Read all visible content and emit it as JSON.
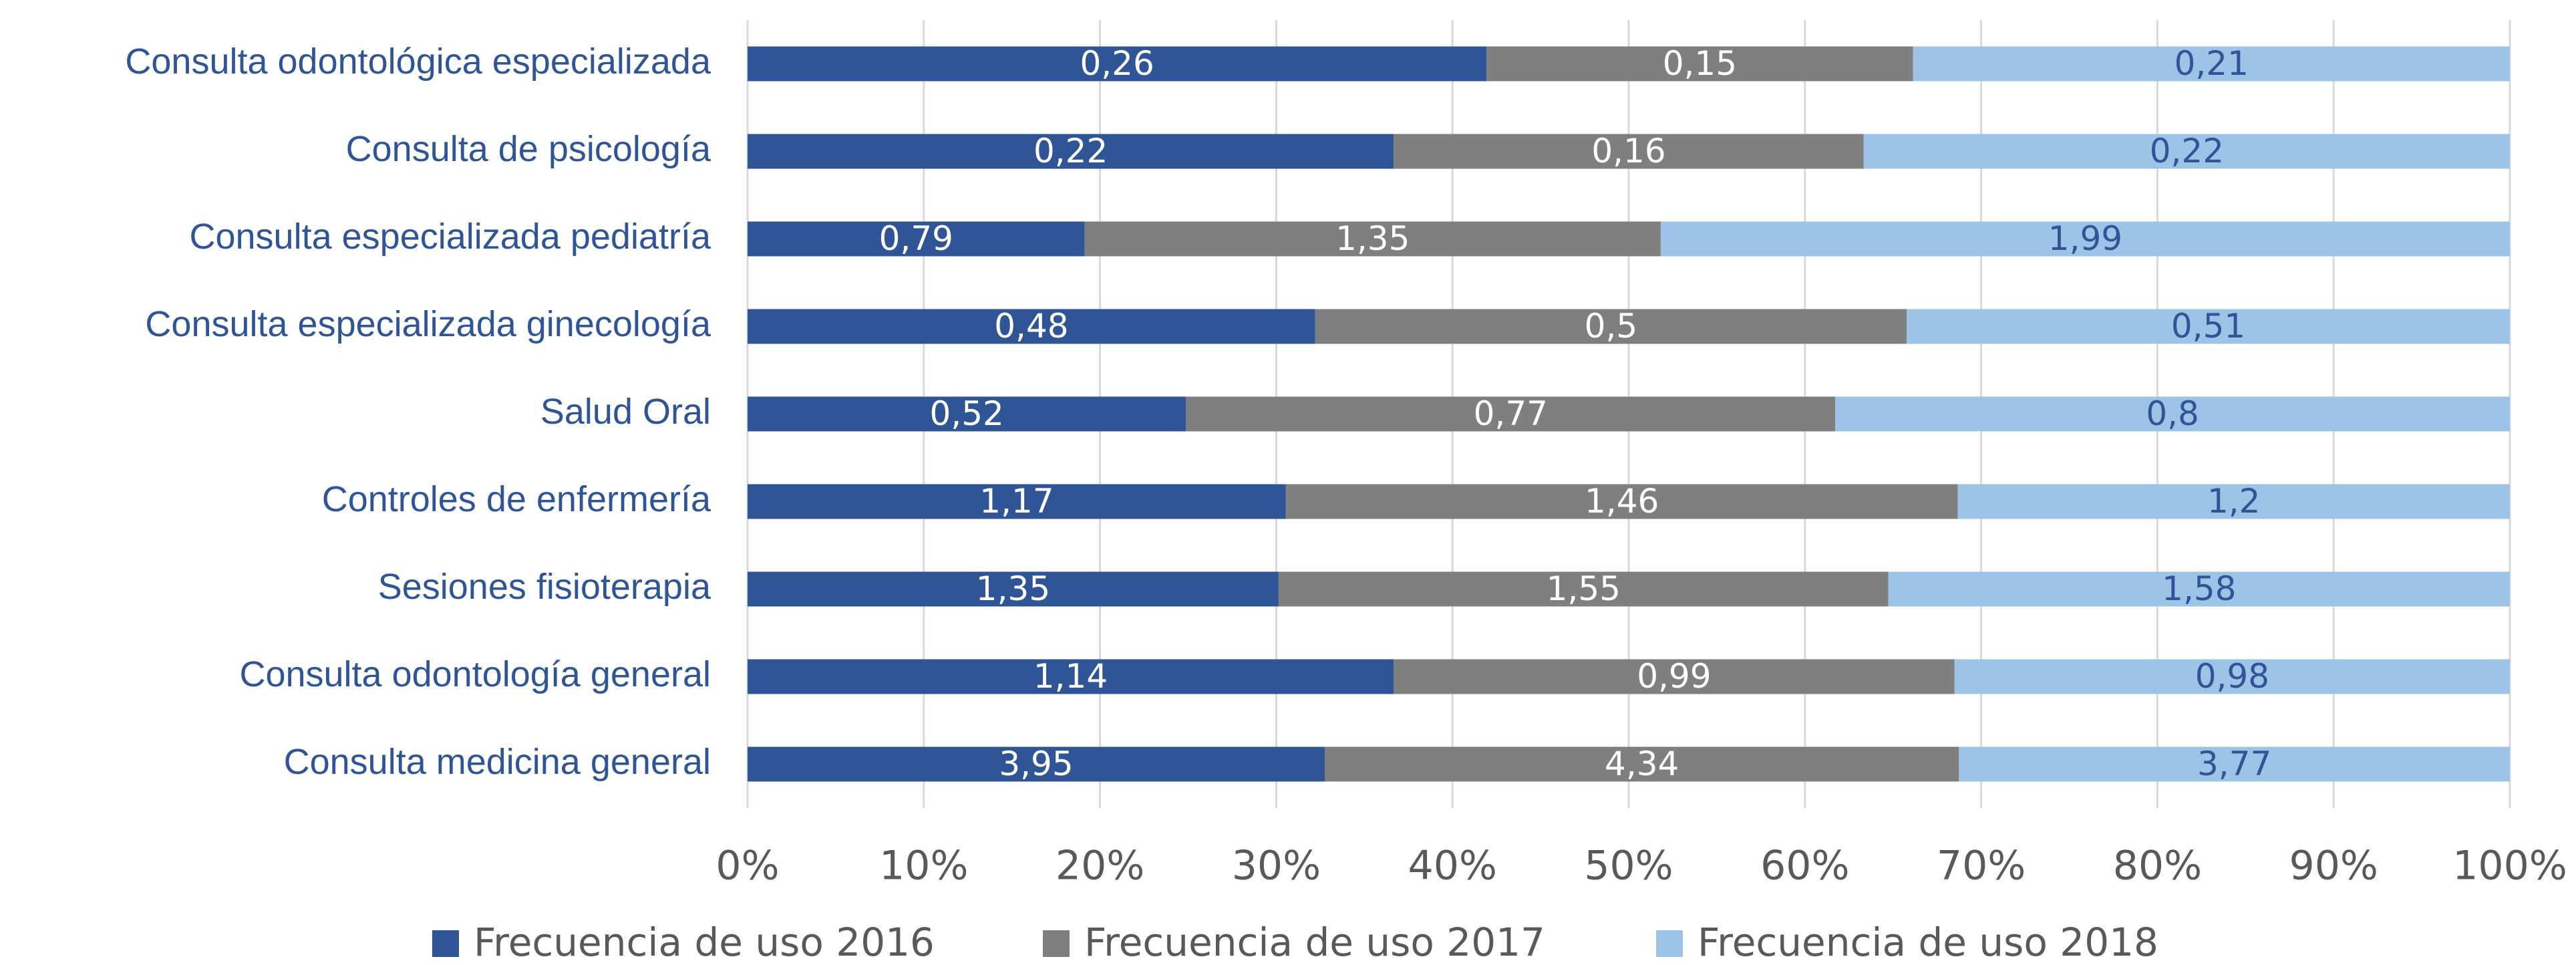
{
  "chart_data": {
    "type": "stacked_bar_100",
    "categories": [
      "Consulta odontológica especializada",
      "Consulta de psicología",
      "Consulta especializada pediatría",
      "Consulta especializada ginecología",
      "Salud Oral",
      "Controles de enfermería",
      "Sesiones fisioterapia",
      "Consulta odontología general",
      "Consulta medicina  general"
    ],
    "series": [
      {
        "name": "Frecuencia de uso 2016",
        "color": "#2f5597",
        "label_color": "#ffffff",
        "values": [
          0.26,
          0.22,
          0.79,
          0.48,
          0.52,
          1.17,
          1.35,
          1.14,
          3.95
        ],
        "value_labels": [
          "0,26",
          "0,22",
          "0,79",
          "0,48",
          "0,52",
          "1,17",
          "1,35",
          "1,14",
          "3,95"
        ]
      },
      {
        "name": "Frecuencia de uso 2017",
        "color": "#7f7f7f",
        "label_color": "#ffffff",
        "values": [
          0.15,
          0.16,
          1.35,
          0.5,
          0.77,
          1.46,
          1.55,
          0.99,
          4.34
        ],
        "value_labels": [
          "0,15",
          "0,16",
          "1,35",
          "0,5",
          "0,77",
          "1,46",
          "1,55",
          "0,99",
          "4,34"
        ]
      },
      {
        "name": "Frecuencia de uso 2018",
        "color": "#9dc3e6",
        "label_color": "#2f5597",
        "values": [
          0.21,
          0.22,
          1.99,
          0.51,
          0.8,
          1.2,
          1.58,
          0.98,
          3.77
        ],
        "value_labels": [
          "0,21",
          "0,22",
          "1,99",
          "0,51",
          "0,8",
          "1,2",
          "1,58",
          "0,98",
          "3,77"
        ]
      }
    ],
    "xlim": [
      0,
      100
    ],
    "xticks": [
      {
        "value": 0,
        "label": "0%"
      },
      {
        "value": 10,
        "label": "10%"
      },
      {
        "value": 20,
        "label": "20%"
      },
      {
        "value": 30,
        "label": "30%"
      },
      {
        "value": 40,
        "label": "40%"
      },
      {
        "value": 50,
        "label": "50%"
      },
      {
        "value": 60,
        "label": "60%"
      },
      {
        "value": 70,
        "label": "70%"
      },
      {
        "value": 80,
        "label": "80%"
      },
      {
        "value": 90,
        "label": "90%"
      },
      {
        "value": 100,
        "label": "100%"
      }
    ],
    "grid": true,
    "legend": "bottom"
  }
}
